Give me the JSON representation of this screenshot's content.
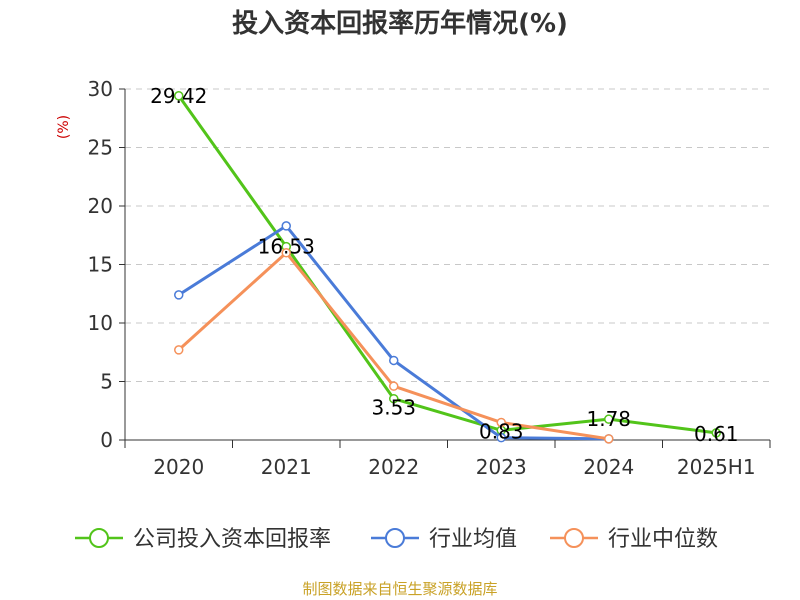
{
  "chart_data": {
    "type": "line",
    "title": "投入资本回报率历年情况(%)",
    "ylabel": "(%)",
    "xlabel": "",
    "categories": [
      "2020",
      "2021",
      "2022",
      "2023",
      "2024",
      "2025H1"
    ],
    "ylim": [
      0,
      30
    ],
    "yticks": [
      0,
      5,
      10,
      15,
      20,
      25,
      30
    ],
    "grid": true,
    "legend_position": "bottom",
    "series": [
      {
        "name": "公司投入资本回报率",
        "color": "#52c41a",
        "values": [
          29.42,
          16.53,
          3.53,
          0.83,
          1.78,
          0.61
        ],
        "labels": [
          "29.42",
          "16.53",
          "3.53",
          "0.83",
          "1.78",
          "0.61"
        ]
      },
      {
        "name": "行业均值",
        "color": "#4a7bd8",
        "values": [
          12.4,
          18.3,
          6.8,
          0.2,
          0.1,
          null
        ]
      },
      {
        "name": "行业中位数",
        "color": "#f5915a",
        "values": [
          7.7,
          16.0,
          4.6,
          1.5,
          0.1,
          null
        ]
      }
    ],
    "source": "制图数据来自恒生聚源数据库"
  }
}
